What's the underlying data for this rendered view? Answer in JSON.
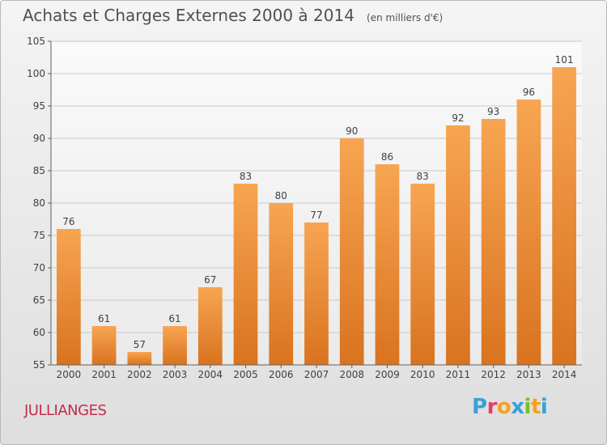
{
  "header": {
    "title": "Achats et Charges Externes 2000 à 2014",
    "subtitle": "(en milliers d'€)"
  },
  "footer": {
    "commune": "JULLIANGES",
    "logo_letters": [
      {
        "char": "P",
        "color": "#3aa0d8"
      },
      {
        "char": "r",
        "color": "#e83a6b"
      },
      {
        "char": "o",
        "color": "#f4a21b"
      },
      {
        "char": "x",
        "color": "#3aa0d8"
      },
      {
        "char": "i",
        "color": "#7cbb2a"
      },
      {
        "char": "t",
        "color": "#f4a21b"
      },
      {
        "char": "i",
        "color": "#3aa0d8"
      }
    ]
  },
  "colors": {
    "bar_top": "#f7a552",
    "bar_bottom": "#d9731f",
    "grid": "#c8c8c8",
    "axis": "#606060",
    "text": "#404040"
  },
  "chart_data": {
    "type": "bar",
    "title": "Achats et Charges Externes 2000 à 2014",
    "subtitle": "(en milliers d'€)",
    "categories": [
      "2000",
      "2001",
      "2002",
      "2003",
      "2004",
      "2005",
      "2006",
      "2007",
      "2008",
      "2009",
      "2010",
      "2011",
      "2012",
      "2013",
      "2014"
    ],
    "values": [
      76,
      61,
      57,
      61,
      67,
      83,
      80,
      77,
      90,
      86,
      83,
      92,
      93,
      96,
      101
    ],
    "ylim": [
      55,
      105
    ],
    "yticks": [
      55,
      60,
      65,
      70,
      75,
      80,
      85,
      90,
      95,
      100,
      105
    ],
    "grid": true,
    "data_labels": true
  }
}
